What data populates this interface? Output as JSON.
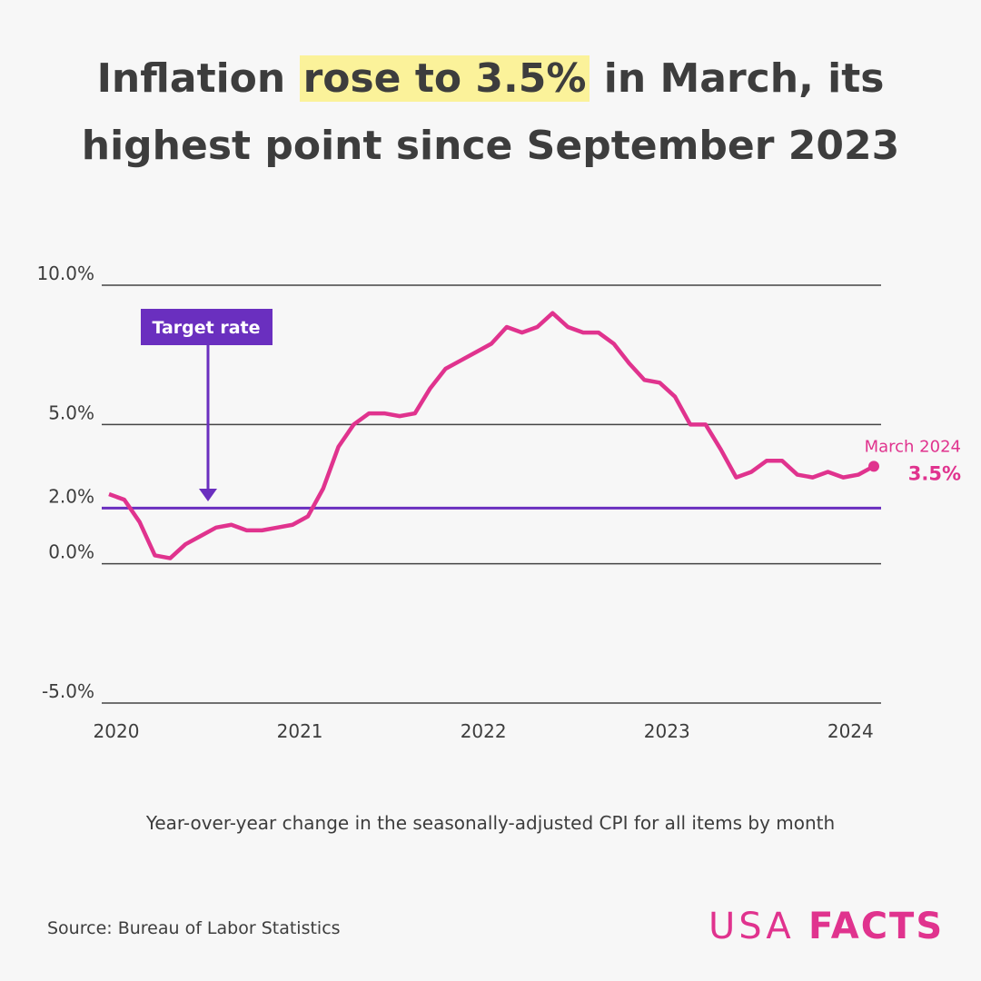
{
  "chart_data": {
    "type": "line",
    "title": {
      "before": "Inflation",
      "highlight": "rose to 3.5%",
      "after": "in March, its highest point since September 2023"
    },
    "subtitle": "Year-over-year change in the seasonally-adjusted CPI for all items by month",
    "source": "Source: Bureau of Labor Statistics",
    "logo": {
      "left": "USA",
      "right": "FACTS"
    },
    "categories": [
      "2020",
      null,
      null,
      null,
      null,
      null,
      null,
      null,
      null,
      null,
      null,
      null,
      "2021",
      null,
      null,
      null,
      null,
      null,
      null,
      null,
      null,
      null,
      null,
      null,
      "2022",
      null,
      null,
      null,
      null,
      null,
      null,
      null,
      null,
      null,
      null,
      null,
      "2023",
      null,
      null,
      null,
      null,
      null,
      null,
      null,
      null,
      null,
      null,
      null,
      "2024",
      null,
      null
    ],
    "series": [
      {
        "name": "CPI",
        "color": "#e0338e",
        "values": [
          2.5,
          2.3,
          1.5,
          0.3,
          0.2,
          0.7,
          1.0,
          1.3,
          1.4,
          1.2,
          1.2,
          1.3,
          1.4,
          1.7,
          2.7,
          4.2,
          5.0,
          5.4,
          5.4,
          5.3,
          5.4,
          6.3,
          7.0,
          7.3,
          7.6,
          7.9,
          8.5,
          8.3,
          8.5,
          9.0,
          8.5,
          8.3,
          8.3,
          7.9,
          7.2,
          6.6,
          6.5,
          6.0,
          5.0,
          5.0,
          4.1,
          3.1,
          3.3,
          3.7,
          3.7,
          3.2,
          3.1,
          3.3,
          3.1,
          3.2,
          3.5
        ],
        "value_labels": [
          null,
          null,
          null,
          null,
          null,
          null,
          null,
          null,
          null,
          null,
          null,
          null,
          null,
          null,
          null,
          null,
          null,
          null,
          null,
          null,
          null,
          null,
          null,
          null,
          null,
          null,
          null,
          null,
          null,
          null,
          null,
          null,
          null,
          null,
          null,
          null,
          null,
          null,
          null,
          null,
          null,
          null,
          null,
          null,
          null,
          null,
          null,
          null,
          null,
          null,
          "3.5%"
        ],
        "end_label": "March 2024"
      }
    ],
    "reference_line": {
      "value": 2,
      "label": "Target rate",
      "color": "#6a2fbf"
    },
    "ylim": [
      -5,
      10
    ],
    "yticks": [
      {
        "value": -5,
        "label": "-5.0%"
      },
      {
        "value": 0,
        "label": "0.0%"
      },
      {
        "value": 2,
        "label": "2.0%"
      },
      {
        "value": 5,
        "label": "5.0%"
      },
      {
        "value": 10,
        "label": "10.0%"
      }
    ],
    "grid": true
  }
}
